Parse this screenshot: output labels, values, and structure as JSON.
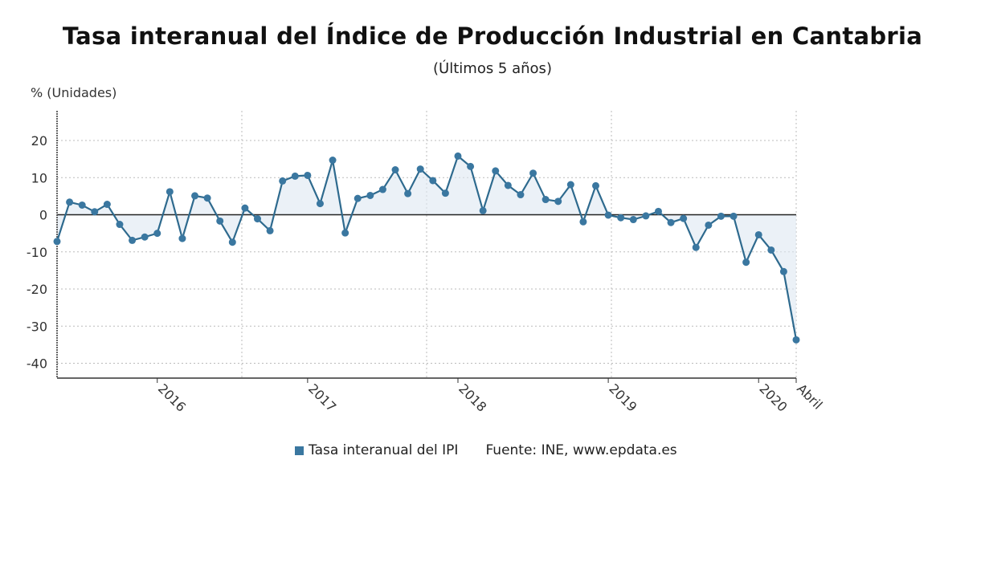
{
  "title": "Tasa interanual del Índice de Producción Industrial en Cantabria",
  "subtitle": "(Últimos 5 años)",
  "legend": {
    "series": "Tasa interanual del IPI",
    "source": "Fuente: INE, www.epdata.es"
  },
  "chart_data": {
    "type": "line",
    "title": "Tasa interanual del Índice de Producción Industrial en Cantabria",
    "subtitle": "(Últimos 5 años)",
    "ylabel": "% (Unidades)",
    "xlabel": "",
    "ylim": [
      -44,
      28
    ],
    "yticks": [
      20,
      10,
      0,
      -10,
      -20,
      -30,
      -40
    ],
    "xtick_labels": [
      {
        "index": 8,
        "label": "2016"
      },
      {
        "index": 20,
        "label": "2017"
      },
      {
        "index": 32,
        "label": "2018"
      },
      {
        "index": 44,
        "label": "2019"
      },
      {
        "index": 56,
        "label": "2020"
      },
      {
        "index": 59,
        "label": "Abril"
      }
    ],
    "grid": true,
    "legend_position": "bottom",
    "color": "#2e6a8e",
    "fill_color": "#dde8f2",
    "series": [
      {
        "name": "Tasa interanual del IPI",
        "values": [
          -7.2,
          3.4,
          2.6,
          0.8,
          2.8,
          -2.6,
          -6.9,
          -6.0,
          -5.0,
          6.2,
          -6.4,
          5.1,
          4.5,
          -1.7,
          -7.4,
          1.8,
          -1.1,
          -4.3,
          9.1,
          10.4,
          10.6,
          3.0,
          14.7,
          -4.9,
          4.4,
          5.2,
          6.8,
          12.1,
          5.7,
          12.3,
          9.2,
          5.8,
          15.8,
          13.0,
          1.1,
          11.8,
          7.9,
          5.4,
          11.2,
          4.1,
          3.6,
          8.1,
          -1.9,
          7.8,
          -0.1,
          -0.8,
          -1.3,
          -0.3,
          0.9,
          -2.1,
          -1.0,
          -8.8,
          -2.8,
          -0.4,
          -0.4,
          -12.8,
          -5.4,
          -9.5,
          -15.3,
          -33.7
        ]
      }
    ]
  }
}
